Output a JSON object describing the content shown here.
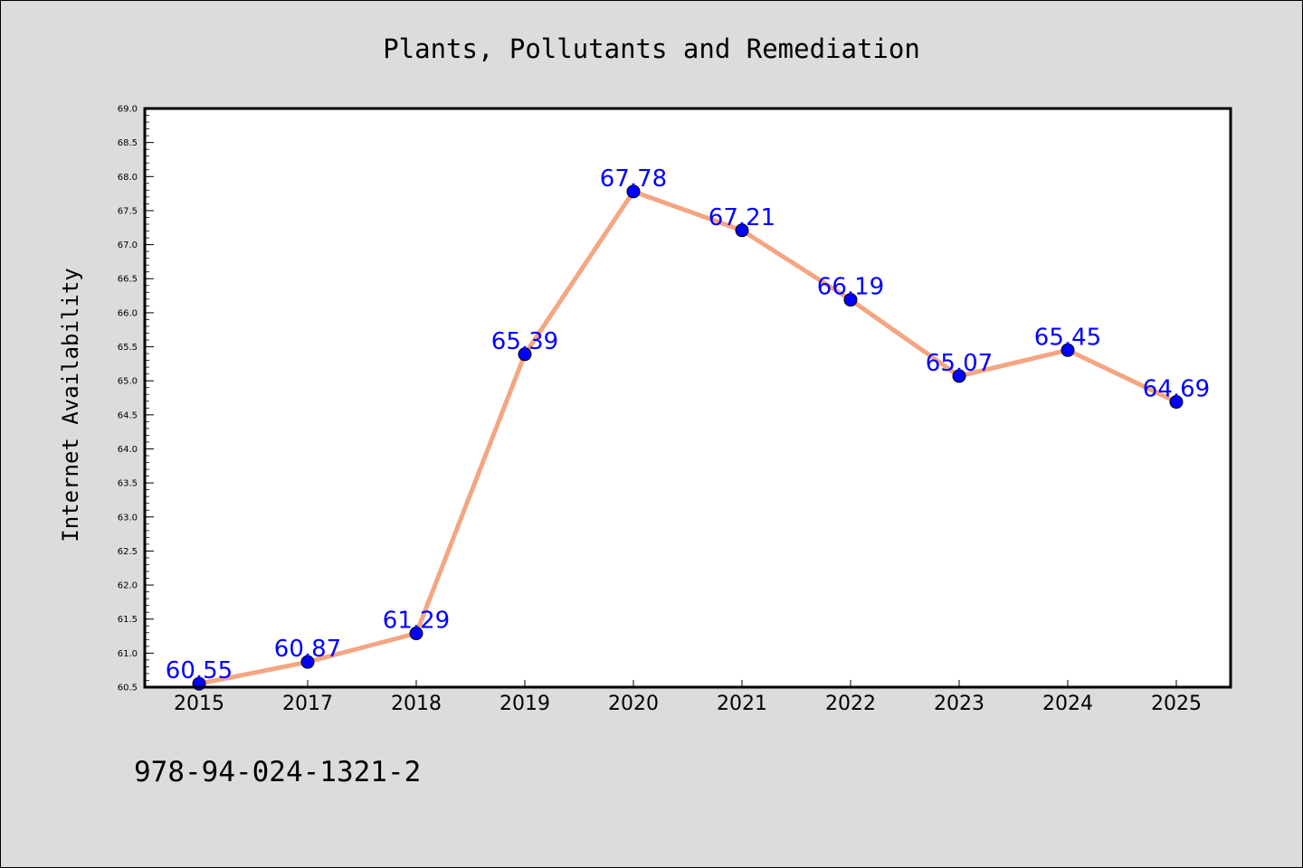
{
  "chart_data": {
    "type": "line",
    "title": "Plants, Pollutants and Remediation",
    "xlabel": "",
    "ylabel": "Internet Availability",
    "categories": [
      "2015",
      "2017",
      "2018",
      "2019",
      "2020",
      "2021",
      "2022",
      "2023",
      "2024",
      "2025"
    ],
    "series": [
      {
        "values": [
          60.55,
          60.87,
          61.29,
          65.39,
          67.78,
          67.21,
          66.19,
          65.07,
          65.45,
          64.69
        ],
        "labels": [
          "60.55",
          "60.87",
          "61.29",
          "65.39",
          "67.78",
          "67.21",
          "66.19",
          "65.07",
          "65.45",
          "64.69"
        ],
        "line_color": "#f4a582",
        "marker_color": "#0000ff"
      }
    ],
    "ylim": [
      60.5,
      69.0
    ],
    "yticks": [
      "60.5",
      "61.0",
      "61.5",
      "62.0",
      "62.5",
      "63.0",
      "63.5",
      "64.0",
      "64.5",
      "65.0",
      "65.5",
      "66.0",
      "66.5",
      "67.0",
      "67.5",
      "68.0",
      "68.5",
      "69.0"
    ],
    "grid": false,
    "label_color": "#0000ff",
    "background": "#dcdcdc",
    "plot_background": "#ffffff"
  },
  "footer": {
    "isbn": "978-94-024-1321-2"
  }
}
